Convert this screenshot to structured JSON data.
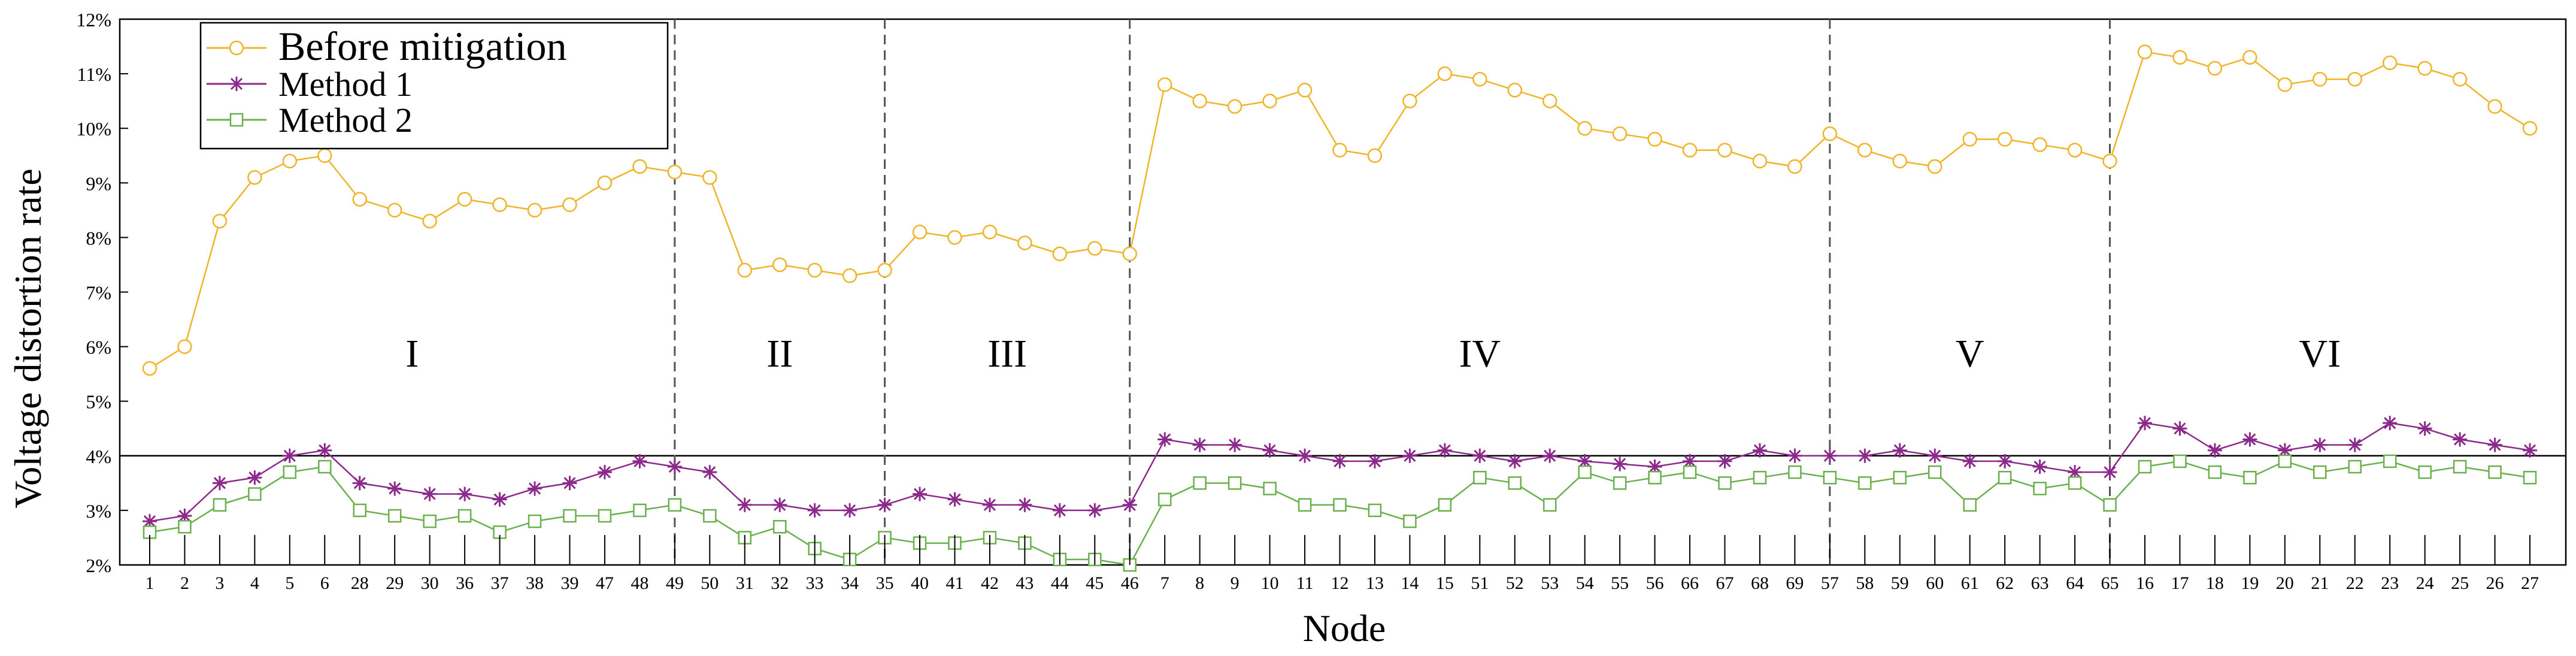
{
  "chart_data": {
    "type": "line",
    "xlabel": "Node",
    "ylabel": "Voltage distortion rate",
    "categories": [
      "1",
      "2",
      "3",
      "4",
      "5",
      "6",
      "28",
      "29",
      "30",
      "36",
      "37",
      "38",
      "39",
      "47",
      "48",
      "49",
      "50",
      "31",
      "32",
      "33",
      "34",
      "35",
      "40",
      "41",
      "42",
      "43",
      "44",
      "45",
      "46",
      "7",
      "8",
      "9",
      "10",
      "11",
      "12",
      "13",
      "14",
      "15",
      "51",
      "52",
      "53",
      "54",
      "55",
      "56",
      "66",
      "67",
      "68",
      "69",
      "57",
      "58",
      "59",
      "60",
      "61",
      "62",
      "63",
      "64",
      "65",
      "16",
      "17",
      "18",
      "19",
      "20",
      "21",
      "22",
      "23",
      "24",
      "25",
      "26",
      "27"
    ],
    "y_ticks": [
      "2%",
      "3%",
      "4%",
      "5%",
      "6%",
      "7%",
      "8%",
      "9%",
      "10%",
      "11%",
      "12%"
    ],
    "ylim": [
      2,
      12
    ],
    "limit_line": 4,
    "region_dividers_after_index": [
      15,
      21,
      28,
      48,
      56
    ],
    "regions": [
      {
        "label": "I",
        "start": 0,
        "end": 15
      },
      {
        "label": "II",
        "start": 15,
        "end": 21
      },
      {
        "label": "III",
        "start": 21,
        "end": 28
      },
      {
        "label": "IV",
        "start": 28,
        "end": 48
      },
      {
        "label": "V",
        "start": 48,
        "end": 56
      },
      {
        "label": "VI",
        "start": 56,
        "end": 68
      }
    ],
    "series": [
      {
        "name": "Before mitigation",
        "color": "#f0b429",
        "marker": "circle",
        "values": [
          5.6,
          6.0,
          8.3,
          9.1,
          9.4,
          9.5,
          8.7,
          8.5,
          8.3,
          8.7,
          8.6,
          8.5,
          8.6,
          9.0,
          9.3,
          9.2,
          9.1,
          7.4,
          7.5,
          7.4,
          7.3,
          7.4,
          8.1,
          8.0,
          8.1,
          7.9,
          7.7,
          7.8,
          7.7,
          10.8,
          10.5,
          10.4,
          10.5,
          10.7,
          9.6,
          9.5,
          10.5,
          11.0,
          10.9,
          10.7,
          10.5,
          10.0,
          9.9,
          9.8,
          9.6,
          9.6,
          9.4,
          9.3,
          9.9,
          9.6,
          9.4,
          9.3,
          9.8,
          9.8,
          9.7,
          9.6,
          9.4,
          11.4,
          11.3,
          11.1,
          11.3,
          10.8,
          10.9,
          10.9,
          11.2,
          11.1,
          10.9,
          10.4,
          10.0
        ]
      },
      {
        "name": "Method 1",
        "color": "#8b2a8b",
        "marker": "star",
        "values": [
          2.8,
          2.9,
          3.5,
          3.6,
          4.0,
          4.1,
          3.5,
          3.4,
          3.3,
          3.3,
          3.2,
          3.4,
          3.5,
          3.7,
          3.9,
          3.8,
          3.7,
          3.1,
          3.1,
          3.0,
          3.0,
          3.1,
          3.3,
          3.2,
          3.1,
          3.1,
          3.0,
          3.0,
          3.1,
          4.3,
          4.2,
          4.2,
          4.1,
          4.0,
          3.9,
          3.9,
          4.0,
          4.1,
          4.0,
          3.9,
          4.0,
          3.9,
          3.85,
          3.8,
          3.9,
          3.9,
          4.1,
          4.0,
          4.0,
          4.0,
          4.1,
          4.0,
          3.9,
          3.9,
          3.8,
          3.7,
          3.7,
          4.6,
          4.5,
          4.1,
          4.3,
          4.1,
          4.2,
          4.2,
          4.6,
          4.5,
          4.3,
          4.2,
          4.1
        ]
      },
      {
        "name": "Method 2",
        "color": "#6ab04c",
        "marker": "square",
        "values": [
          2.6,
          2.7,
          3.1,
          3.3,
          3.7,
          3.8,
          3.0,
          2.9,
          2.8,
          2.9,
          2.6,
          2.8,
          2.9,
          2.9,
          3.0,
          3.1,
          2.9,
          2.5,
          2.7,
          2.3,
          2.1,
          2.5,
          2.4,
          2.4,
          2.5,
          2.4,
          2.1,
          2.1,
          2.0,
          3.2,
          3.5,
          3.5,
          3.4,
          3.1,
          3.1,
          3.0,
          2.8,
          3.1,
          3.6,
          3.5,
          3.1,
          3.7,
          3.5,
          3.6,
          3.7,
          3.5,
          3.6,
          3.7,
          3.6,
          3.5,
          3.6,
          3.7,
          3.1,
          3.6,
          3.4,
          3.5,
          3.1,
          3.8,
          3.9,
          3.7,
          3.6,
          3.9,
          3.7,
          3.8,
          3.9,
          3.7,
          3.8,
          3.7,
          3.6
        ]
      }
    ]
  }
}
